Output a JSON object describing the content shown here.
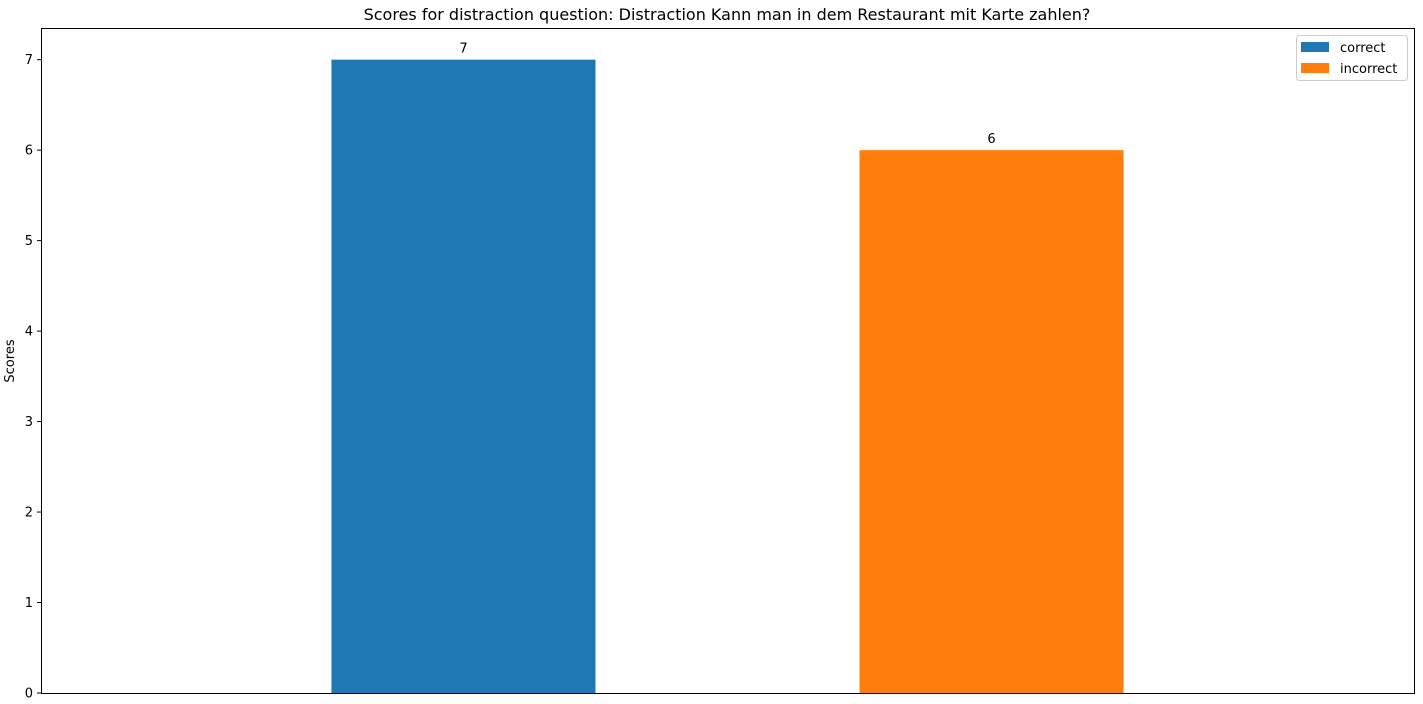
{
  "chart_data": {
    "type": "bar",
    "title": "Scores for distraction question: Distraction Kann man in dem Restaurant mit Karte zahlen?",
    "xlabel": "",
    "ylabel": "Scores",
    "ylim": [
      0,
      7.35
    ],
    "yticks": [
      0,
      1,
      2,
      3,
      4,
      5,
      6,
      7
    ],
    "grid": false,
    "legend_position": "top-right",
    "series": [
      {
        "name": "correct",
        "value": 7,
        "color": "#1f77b4"
      },
      {
        "name": "incorrect",
        "value": 6,
        "color": "#ff7f0e"
      }
    ]
  }
}
